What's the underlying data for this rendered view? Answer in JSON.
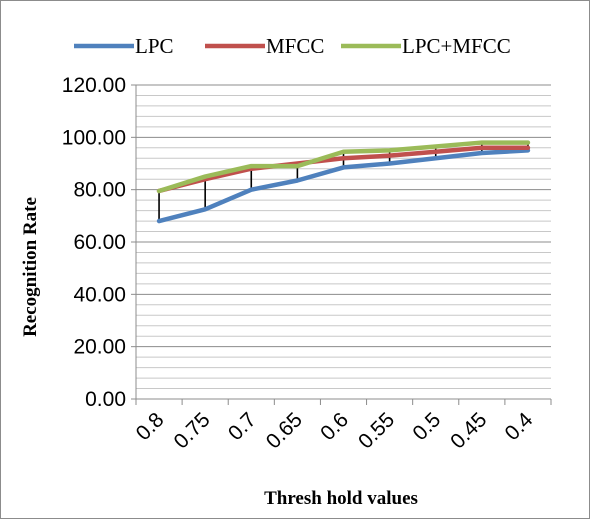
{
  "chart_data": {
    "type": "line",
    "title": "",
    "xlabel": "Thresh hold values",
    "ylabel": "Recognition Rate",
    "categories": [
      "0.8",
      "0.75",
      "0.7",
      "0.65",
      "0.6",
      "0.55",
      "0.5",
      "0.45",
      "0.4"
    ],
    "ylim": [
      0,
      120
    ],
    "yticks": [
      "0.00",
      "20.00",
      "40.00",
      "60.00",
      "80.00",
      "100.00",
      "120.00"
    ],
    "grid": true,
    "legend_position": "top",
    "series": [
      {
        "name": "LPC",
        "color": "#4f81bd",
        "values": [
          68,
          72.5,
          80,
          83.5,
          88.5,
          90,
          92,
          94,
          95
        ]
      },
      {
        "name": "MFCC",
        "color": "#c0504d",
        "values": [
          79.5,
          84,
          88,
          90,
          92,
          93,
          94.5,
          96,
          96
        ]
      },
      {
        "name": "LPC+MFCC",
        "color": "#9bbb59",
        "values": [
          79.5,
          85,
          89,
          89,
          94.5,
          95,
          96.5,
          98,
          98
        ]
      }
    ]
  }
}
